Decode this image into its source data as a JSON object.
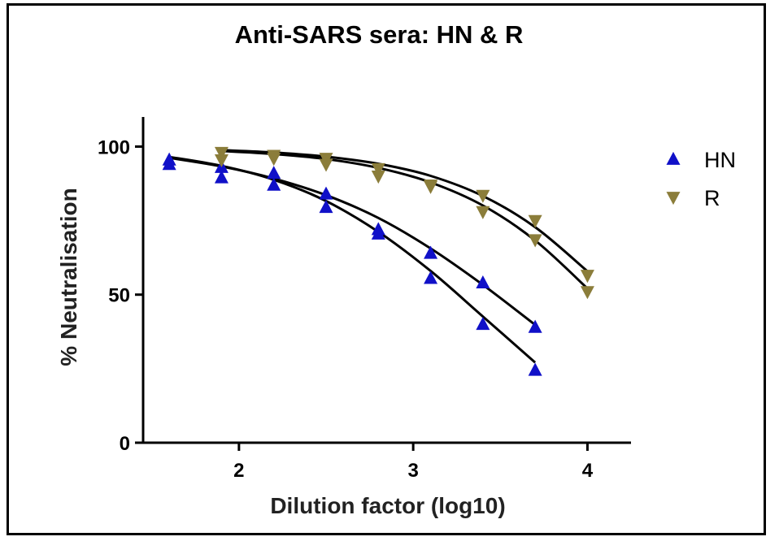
{
  "chart_data": {
    "type": "scatter",
    "title": "Anti-SARS sera: HN & R",
    "xlabel": "Dilution factor (log10)",
    "ylabel": "% Neutralisation",
    "xlim": [
      1.45,
      4.25
    ],
    "ylim": [
      0,
      110
    ],
    "x_ticks": [
      2,
      3,
      4
    ],
    "x_tick_labels": [
      "2",
      "3",
      "4"
    ],
    "y_ticks": [
      0,
      50,
      100
    ],
    "y_tick_labels": [
      "0",
      "50",
      "100"
    ],
    "grid": false,
    "legend_position": "right",
    "series": [
      {
        "name": "HN",
        "marker": "triangle-up",
        "color": "#1010c8",
        "points": [
          [
            1.6,
            95.5
          ],
          [
            1.6,
            94
          ],
          [
            1.9,
            93
          ],
          [
            1.9,
            89.5
          ],
          [
            2.2,
            91
          ],
          [
            2.2,
            87
          ],
          [
            2.5,
            84
          ],
          [
            2.5,
            79.5
          ],
          [
            2.8,
            72
          ],
          [
            2.8,
            70.5
          ],
          [
            3.1,
            64
          ],
          [
            3.1,
            55.5
          ],
          [
            3.4,
            54
          ],
          [
            3.4,
            40
          ],
          [
            3.7,
            39
          ],
          [
            3.7,
            24.5
          ]
        ],
        "fits": [
          [
            [
              1.6,
              96.2
            ],
            [
              1.9,
              93.3
            ],
            [
              2.2,
              89.2
            ],
            [
              2.5,
              83.6
            ],
            [
              2.8,
              75.9
            ],
            [
              3.1,
              65.6
            ],
            [
              3.4,
              53.3
            ],
            [
              3.7,
              39.8
            ]
          ],
          [
            [
              1.6,
              96.5
            ],
            [
              1.9,
              93.5
            ],
            [
              2.2,
              88.8
            ],
            [
              2.5,
              81.6
            ],
            [
              2.8,
              71.2
            ],
            [
              3.1,
              58.0
            ],
            [
              3.4,
              42.6
            ],
            [
              3.7,
              27.1
            ]
          ]
        ]
      },
      {
        "name": "R",
        "marker": "triangle-down",
        "color": "#8b7d3a",
        "points": [
          [
            1.9,
            98
          ],
          [
            1.9,
            95.5
          ],
          [
            2.2,
            97
          ],
          [
            2.2,
            96
          ],
          [
            2.5,
            96
          ],
          [
            2.5,
            94
          ],
          [
            2.8,
            92.5
          ],
          [
            2.8,
            90
          ],
          [
            3.1,
            87
          ],
          [
            3.1,
            86.5
          ],
          [
            3.4,
            83.5
          ],
          [
            3.4,
            78
          ],
          [
            3.7,
            75
          ],
          [
            3.7,
            68.5
          ],
          [
            4.0,
            56.5
          ],
          [
            4.0,
            51
          ]
        ],
        "fits": [
          [
            [
              1.9,
              98.8
            ],
            [
              2.2,
              98.0
            ],
            [
              2.5,
              96.6
            ],
            [
              2.8,
              94.2
            ],
            [
              3.1,
              90.1
            ],
            [
              3.4,
              83.3
            ],
            [
              3.7,
              72.8
            ],
            [
              4.0,
              57.9
            ]
          ],
          [
            [
              1.9,
              98.5
            ],
            [
              2.2,
              97.5
            ],
            [
              2.5,
              95.8
            ],
            [
              2.8,
              92.8
            ],
            [
              3.1,
              87.9
            ],
            [
              3.4,
              80.1
            ],
            [
              3.7,
              68.3
            ],
            [
              4.0,
              52.1
            ]
          ]
        ]
      }
    ]
  }
}
